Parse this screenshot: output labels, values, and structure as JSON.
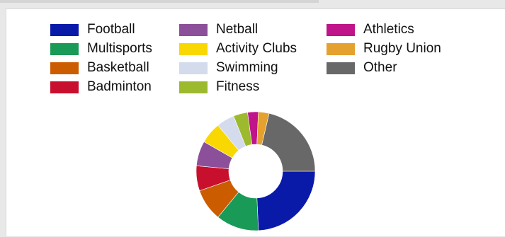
{
  "chart_data": {
    "type": "pie",
    "donut": true,
    "title": "",
    "legend_placement": "top",
    "categories": [
      "Football",
      "Multisports",
      "Basketball",
      "Badminton",
      "Netball",
      "Activity Clubs",
      "Swimming",
      "Fitness",
      "Athletics",
      "Rugby Union",
      "Other"
    ],
    "colors": [
      "#0a1aa8",
      "#1a9a57",
      "#cc5c00",
      "#c8102e",
      "#8c4f9a",
      "#f8d800",
      "#d3dbec",
      "#9dba2f",
      "#c0148a",
      "#e4a12e",
      "#686868"
    ],
    "values": [
      25,
      12,
      9,
      7,
      7,
      6,
      5,
      4,
      3,
      3,
      22
    ]
  }
}
